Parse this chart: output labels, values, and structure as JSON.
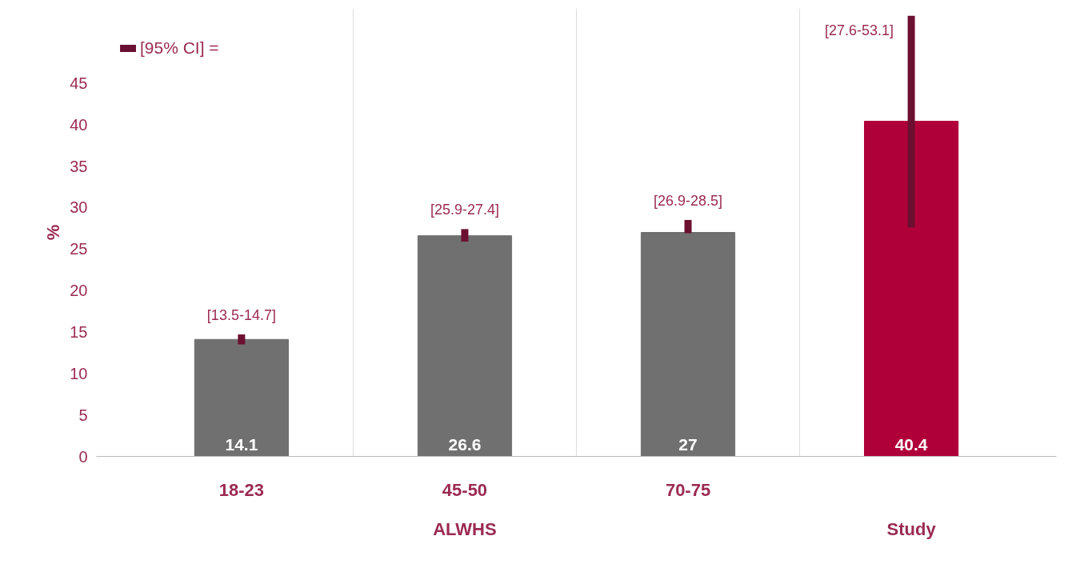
{
  "chart_data": {
    "type": "bar",
    "ylabel": "%",
    "categories": [
      "18-23",
      "45-50",
      "70-75",
      null
    ],
    "values": [
      14.1,
      26.6,
      27,
      40.4
    ],
    "colors": [
      "#707070",
      "#707070",
      "#707070",
      "#b0003a"
    ],
    "errors": [
      [
        13.5,
        14.7
      ],
      [
        25.9,
        27.4
      ],
      [
        26.9,
        28.5
      ],
      [
        27.6,
        53.1
      ]
    ],
    "data_labels": true,
    "ylim": [
      0,
      54
    ],
    "yticks": [
      0,
      5,
      10,
      15,
      20,
      25,
      30,
      35,
      40,
      45
    ],
    "grid": false,
    "annotations": [
      {
        "text": "[13.5-14.7]",
        "x": "18-23",
        "y": 14.7
      },
      {
        "text": "[25.9-27.4]",
        "x": "45-50",
        "y": 27.4
      },
      {
        "text": "[26.9-28.5]",
        "x": "70-75",
        "y": 28.5
      },
      "[27.6-53.1]",
      "[95% CI] =",
      "ALWHS",
      "Study"
    ]
  }
}
